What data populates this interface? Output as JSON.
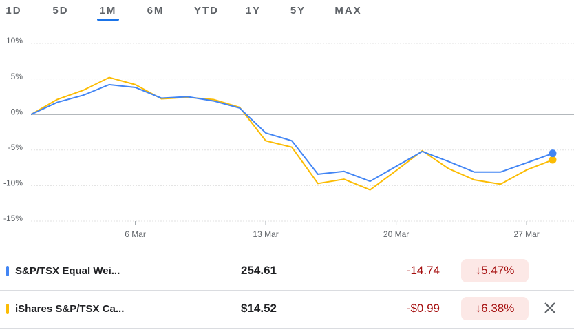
{
  "tabs": {
    "items": [
      "1D",
      "5D",
      "1M",
      "6M",
      "YTD",
      "1Y",
      "5Y",
      "MAX"
    ],
    "active": 2
  },
  "chart_data": {
    "type": "line",
    "categories": [
      null,
      null,
      null,
      null,
      "6 Mar",
      null,
      null,
      null,
      null,
      "13 Mar",
      null,
      null,
      null,
      null,
      "20 Mar",
      null,
      null,
      null,
      null,
      "27 Mar",
      null
    ],
    "series": [
      {
        "name": "S&P/TSX Equal Wei...",
        "color": "#4285f4",
        "values": [
          0,
          1.7,
          2.7,
          4.2,
          3.8,
          2.3,
          2.5,
          1.9,
          0.9,
          -2.6,
          -3.7,
          -8.4,
          -8.0,
          -9.4,
          -7.3,
          -5.2,
          -6.6,
          -8.1,
          -8.1,
          -6.8,
          -5.47
        ]
      },
      {
        "name": "iShares S&P/TSX Ca...",
        "color": "#fbbc04",
        "values": [
          0,
          2.1,
          3.4,
          5.2,
          4.2,
          2.2,
          2.4,
          2.1,
          1.0,
          -3.7,
          -4.6,
          -9.7,
          -9.1,
          -10.6,
          -7.9,
          -5.1,
          -7.6,
          -9.2,
          -9.8,
          -7.8,
          -6.38
        ]
      }
    ],
    "ylim": [
      -15,
      10
    ],
    "yticks": [
      {
        "value": 10,
        "label": "10%"
      },
      {
        "value": 5,
        "label": "5%"
      },
      {
        "value": 0,
        "label": "0%"
      },
      {
        "value": -5,
        "label": "-5%"
      },
      {
        "value": -10,
        "label": "-10%"
      },
      {
        "value": -15,
        "label": "-15%"
      }
    ],
    "grid": true
  },
  "table": {
    "rows": [
      [
        "S&P/TSX Equal Wei...",
        "254.61",
        "-14.74",
        "5.47%"
      ],
      [
        "iShares S&P/TSX Ca...",
        "$14.52",
        "-$0.99",
        "6.38%"
      ]
    ]
  }
}
